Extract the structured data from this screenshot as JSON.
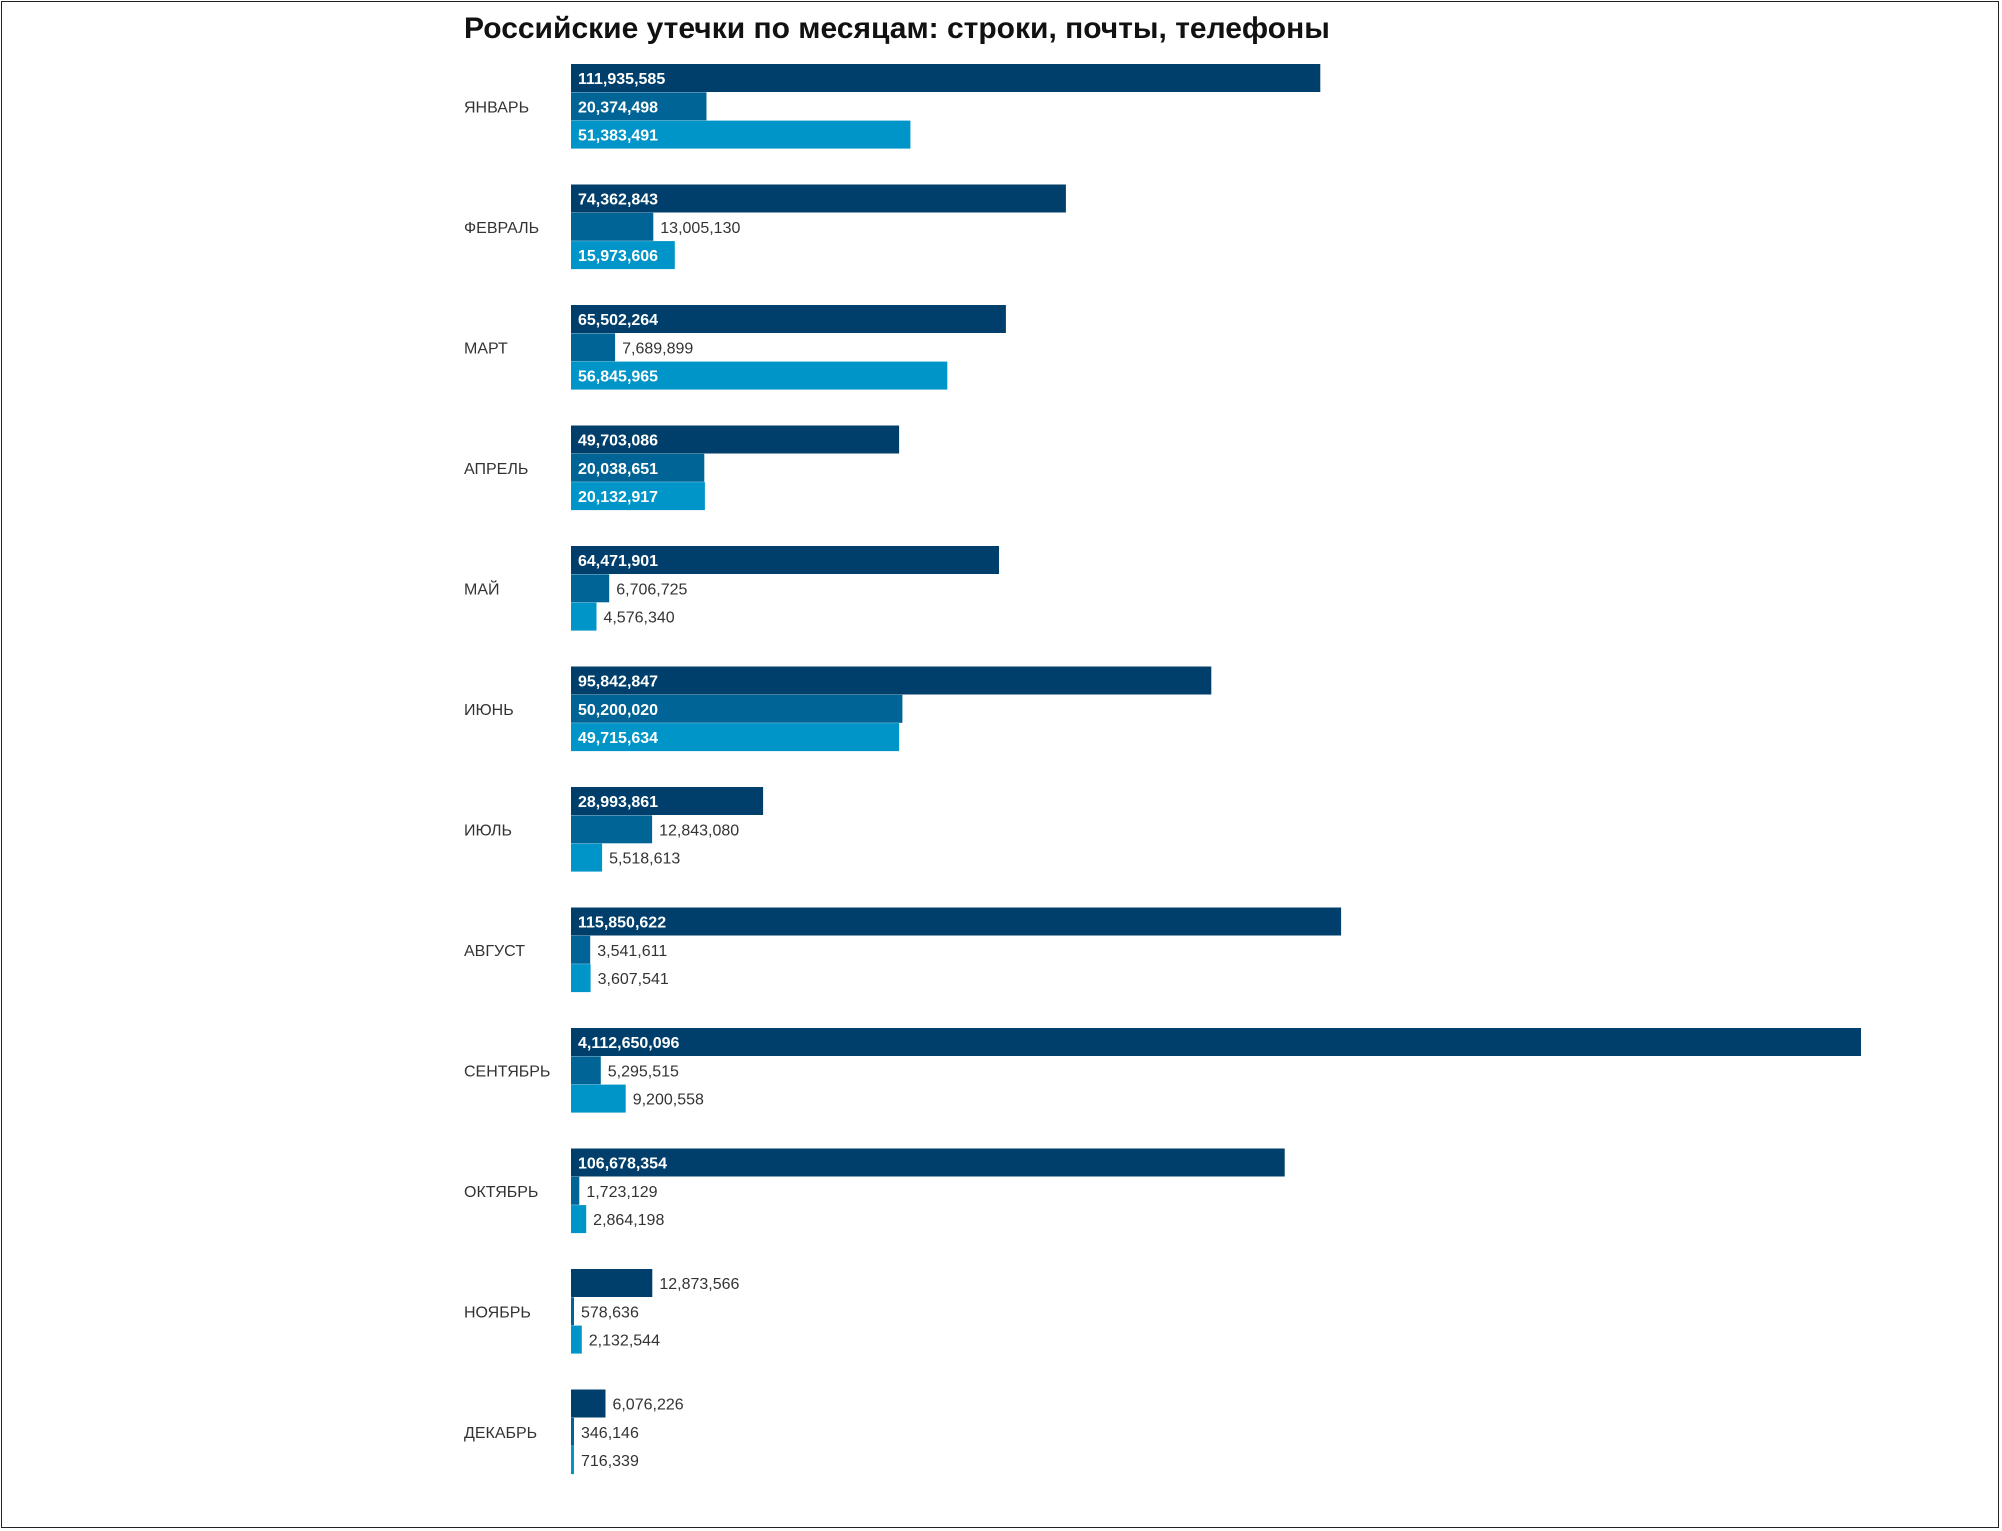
{
  "chart_data": {
    "type": "bar",
    "orientation": "horizontal",
    "title": "Российские утечки по месяцам: строки, почты, телефоны",
    "xlabel": "",
    "ylabel": "",
    "grid": false,
    "legend": "none",
    "categories": [
      "ЯНВАРЬ",
      "ФЕВРАЛЬ",
      "МАРТ",
      "АПРЕЛЬ",
      "МАЙ",
      "ИЮНЬ",
      "ИЮЛЬ",
      "АВГУСТ",
      "СЕНТЯБРЬ",
      "ОКТЯБРЬ",
      "НОЯБРЬ",
      "ДЕКАБРЬ"
    ],
    "series": [
      {
        "color": "#003f6b",
        "values": [
          111935585,
          74362843,
          65502264,
          49703086,
          64471901,
          95842847,
          28993861,
          115850622,
          4112650096,
          106678354,
          12873566,
          6076226
        ],
        "labels": [
          "111,935,585",
          "74,362,843",
          "65,502,264",
          "49,703,086",
          "64,471,901",
          "95,842,847",
          "28,993,861",
          "115,850,622",
          "4,112,650,096",
          "106,678,354",
          "12,873,566",
          "6,076,226"
        ]
      },
      {
        "color": "#006596",
        "values": [
          20374498,
          13005130,
          7689899,
          20038651,
          6706725,
          50200020,
          12843080,
          3541611,
          5295515,
          1723129,
          578636,
          346146
        ],
        "labels": [
          "20,374,498",
          "13,005,130",
          "7,689,899",
          "20,038,651",
          "6,706,725",
          "50,200,020",
          "12,843,080",
          "3,541,611",
          "5,295,515",
          "1,723,129",
          "578,636",
          "346,146"
        ]
      },
      {
        "color": "#0095c8",
        "values": [
          51383491,
          15973606,
          56845965,
          20132917,
          4576340,
          49715634,
          5518613,
          3607541,
          9200558,
          2864198,
          2132544,
          716339
        ],
        "labels": [
          "51,383,491",
          "15,973,606",
          "56,845,965",
          "20,132,917",
          "4,576,340",
          "49,715,634",
          "5,518,613",
          "3,607,541",
          "9,200,558",
          "2,864,198",
          "2,132,544",
          "716,339"
        ]
      }
    ]
  }
}
